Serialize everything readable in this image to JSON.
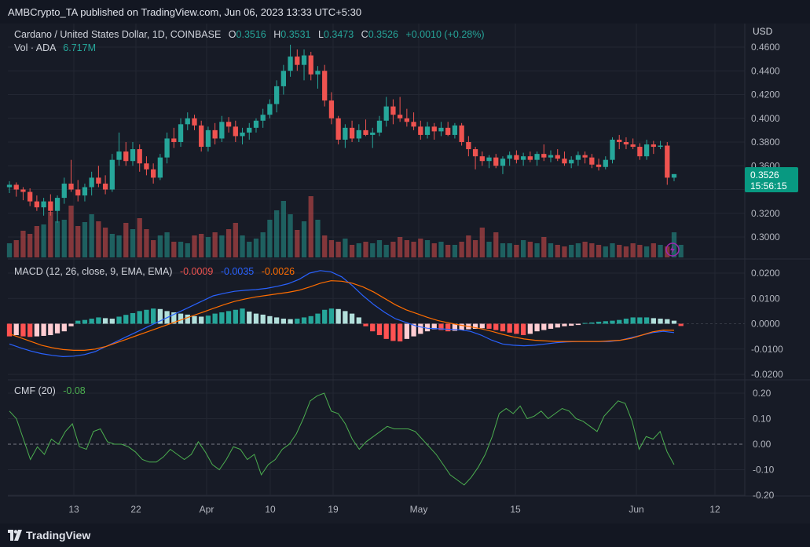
{
  "publisher_line": "AMBCrypto_TA published on TradingView.com, Jun 06, 2023 13:33 UTC+5:30",
  "footer": {
    "brand": "TradingView"
  },
  "legend": {
    "symbol": "Cardano / United States Dollar, 1D, COINBASE",
    "o_label": "O",
    "o_value": "0.3516",
    "h_label": "H",
    "h_value": "0.3531",
    "l_label": "L",
    "l_value": "0.3473",
    "c_label": "C",
    "c_value": "0.3526",
    "change": "+0.0010 (+0.28%)",
    "vol_label": "Vol · ADA",
    "vol_value": "6.717M"
  },
  "price_axis": {
    "currency": "USD",
    "ticks": [
      "0.4600",
      "0.4400",
      "0.4200",
      "0.4000",
      "0.3800",
      "0.3600",
      "0.3200",
      "0.3000"
    ],
    "last_price": "0.3526",
    "countdown": "15:56:15"
  },
  "macd": {
    "label": "MACD (12, 26, close, 9, EMA, EMA)",
    "hist_value": "-0.0009",
    "macd_value": "-0.0035",
    "signal_value": "-0.0026",
    "ticks": [
      "0.0200",
      "0.0100",
      "0.0000",
      "-0.0100",
      "-0.0200"
    ]
  },
  "cmf": {
    "label": "CMF (20)",
    "value": "-0.08",
    "ticks": [
      "0.20",
      "0.10",
      "0.00",
      "-0.10",
      "-0.20"
    ]
  },
  "time_axis": {
    "labels": [
      "13",
      "22",
      "Apr",
      "10",
      "19",
      "May",
      "15",
      "Jun",
      "12"
    ]
  },
  "colors": {
    "up": "#26a69a",
    "down": "#ef5350",
    "macd_line": "#2962ff",
    "signal_line": "#ff6d00",
    "cmf_line": "#4caf50",
    "badge": "#089981"
  },
  "chart_data": {
    "type": "candlestick",
    "title": "Cardano / United States Dollar, 1D, COINBASE",
    "ylim": [
      0.285,
      0.47
    ],
    "ohlc": [
      [
        0.342,
        0.347,
        0.337,
        0.344
      ],
      [
        0.344,
        0.346,
        0.334,
        0.34
      ],
      [
        0.34,
        0.342,
        0.331,
        0.338
      ],
      [
        0.338,
        0.341,
        0.326,
        0.33
      ],
      [
        0.33,
        0.335,
        0.322,
        0.325
      ],
      [
        0.325,
        0.333,
        0.318,
        0.33
      ],
      [
        0.33,
        0.336,
        0.318,
        0.322
      ],
      [
        0.322,
        0.335,
        0.312,
        0.333
      ],
      [
        0.333,
        0.35,
        0.328,
        0.345
      ],
      [
        0.345,
        0.365,
        0.338,
        0.34
      ],
      [
        0.34,
        0.348,
        0.33,
        0.335
      ],
      [
        0.335,
        0.345,
        0.33,
        0.342
      ],
      [
        0.342,
        0.355,
        0.335,
        0.35
      ],
      [
        0.35,
        0.36,
        0.342,
        0.345
      ],
      [
        0.345,
        0.352,
        0.336,
        0.34
      ],
      [
        0.34,
        0.37,
        0.338,
        0.365
      ],
      [
        0.365,
        0.388,
        0.36,
        0.372
      ],
      [
        0.372,
        0.38,
        0.36,
        0.364
      ],
      [
        0.364,
        0.38,
        0.36,
        0.374
      ],
      [
        0.374,
        0.378,
        0.355,
        0.362
      ],
      [
        0.362,
        0.368,
        0.352,
        0.357
      ],
      [
        0.357,
        0.362,
        0.345,
        0.35
      ],
      [
        0.35,
        0.37,
        0.348,
        0.367
      ],
      [
        0.367,
        0.388,
        0.362,
        0.383
      ],
      [
        0.383,
        0.392,
        0.375,
        0.38
      ],
      [
        0.38,
        0.4,
        0.376,
        0.395
      ],
      [
        0.395,
        0.405,
        0.39,
        0.4
      ],
      [
        0.4,
        0.403,
        0.39,
        0.394
      ],
      [
        0.394,
        0.398,
        0.372,
        0.376
      ],
      [
        0.376,
        0.393,
        0.372,
        0.39
      ],
      [
        0.39,
        0.396,
        0.378,
        0.383
      ],
      [
        0.383,
        0.402,
        0.38,
        0.397
      ],
      [
        0.397,
        0.401,
        0.388,
        0.393
      ],
      [
        0.393,
        0.398,
        0.38,
        0.385
      ],
      [
        0.385,
        0.392,
        0.378,
        0.388
      ],
      [
        0.388,
        0.396,
        0.382,
        0.392
      ],
      [
        0.392,
        0.4,
        0.388,
        0.398
      ],
      [
        0.398,
        0.408,
        0.392,
        0.403
      ],
      [
        0.403,
        0.416,
        0.4,
        0.412
      ],
      [
        0.412,
        0.432,
        0.405,
        0.427
      ],
      [
        0.427,
        0.445,
        0.42,
        0.44
      ],
      [
        0.44,
        0.462,
        0.435,
        0.452
      ],
      [
        0.452,
        0.458,
        0.44,
        0.445
      ],
      [
        0.445,
        0.458,
        0.432,
        0.453
      ],
      [
        0.453,
        0.456,
        0.432,
        0.437
      ],
      [
        0.437,
        0.444,
        0.425,
        0.44
      ],
      [
        0.44,
        0.445,
        0.41,
        0.415
      ],
      [
        0.415,
        0.422,
        0.395,
        0.4
      ],
      [
        0.4,
        0.402,
        0.378,
        0.382
      ],
      [
        0.382,
        0.395,
        0.375,
        0.392
      ],
      [
        0.392,
        0.398,
        0.38,
        0.383
      ],
      [
        0.383,
        0.395,
        0.38,
        0.39
      ],
      [
        0.39,
        0.399,
        0.385,
        0.386
      ],
      [
        0.386,
        0.392,
        0.375,
        0.388
      ],
      [
        0.388,
        0.402,
        0.385,
        0.398
      ],
      [
        0.398,
        0.418,
        0.393,
        0.41
      ],
      [
        0.41,
        0.416,
        0.395,
        0.403
      ],
      [
        0.403,
        0.418,
        0.397,
        0.4
      ],
      [
        0.4,
        0.408,
        0.393,
        0.397
      ],
      [
        0.397,
        0.405,
        0.39,
        0.393
      ],
      [
        0.393,
        0.398,
        0.382,
        0.386
      ],
      [
        0.386,
        0.397,
        0.383,
        0.393
      ],
      [
        0.393,
        0.396,
        0.382,
        0.389
      ],
      [
        0.389,
        0.397,
        0.385,
        0.392
      ],
      [
        0.392,
        0.397,
        0.385,
        0.386
      ],
      [
        0.386,
        0.396,
        0.383,
        0.394
      ],
      [
        0.394,
        0.396,
        0.377,
        0.38
      ],
      [
        0.38,
        0.385,
        0.368,
        0.374
      ],
      [
        0.374,
        0.376,
        0.357,
        0.368
      ],
      [
        0.368,
        0.372,
        0.36,
        0.364
      ],
      [
        0.364,
        0.369,
        0.358,
        0.367
      ],
      [
        0.367,
        0.37,
        0.358,
        0.36
      ],
      [
        0.36,
        0.368,
        0.353,
        0.366
      ],
      [
        0.366,
        0.372,
        0.36,
        0.369
      ],
      [
        0.369,
        0.373,
        0.362,
        0.365
      ],
      [
        0.365,
        0.371,
        0.36,
        0.368
      ],
      [
        0.368,
        0.372,
        0.363,
        0.365
      ],
      [
        0.365,
        0.372,
        0.36,
        0.37
      ],
      [
        0.37,
        0.378,
        0.364,
        0.367
      ],
      [
        0.367,
        0.373,
        0.363,
        0.369
      ],
      [
        0.369,
        0.374,
        0.364,
        0.366
      ],
      [
        0.366,
        0.372,
        0.36,
        0.362
      ],
      [
        0.362,
        0.368,
        0.358,
        0.365
      ],
      [
        0.365,
        0.372,
        0.36,
        0.369
      ],
      [
        0.369,
        0.372,
        0.362,
        0.367
      ],
      [
        0.367,
        0.37,
        0.358,
        0.361
      ],
      [
        0.361,
        0.366,
        0.356,
        0.359
      ],
      [
        0.359,
        0.368,
        0.357,
        0.365
      ],
      [
        0.365,
        0.384,
        0.362,
        0.382
      ],
      [
        0.382,
        0.386,
        0.374,
        0.38
      ],
      [
        0.38,
        0.384,
        0.374,
        0.378
      ],
      [
        0.378,
        0.383,
        0.374,
        0.376
      ],
      [
        0.376,
        0.379,
        0.365,
        0.368
      ],
      [
        0.368,
        0.382,
        0.365,
        0.378
      ],
      [
        0.378,
        0.381,
        0.37,
        0.376
      ],
      [
        0.376,
        0.381,
        0.374,
        0.377
      ],
      [
        0.377,
        0.38,
        0.344,
        0.35
      ],
      [
        0.35,
        0.353,
        0.347,
        0.353
      ]
    ],
    "volume": [
      18,
      22,
      34,
      30,
      40,
      42,
      58,
      46,
      48,
      66,
      40,
      45,
      55,
      46,
      38,
      30,
      28,
      44,
      36,
      50,
      36,
      22,
      28,
      32,
      20,
      20,
      18,
      28,
      30,
      26,
      32,
      28,
      36,
      44,
      28,
      20,
      24,
      32,
      48,
      60,
      72,
      55,
      35,
      46,
      78,
      48,
      28,
      22,
      20,
      24,
      16,
      18,
      20,
      18,
      22,
      16,
      20,
      26,
      22,
      20,
      24,
      22,
      18,
      20,
      16,
      16,
      20,
      28,
      22,
      38,
      20,
      32,
      18,
      18,
      16,
      22,
      20,
      18,
      26,
      18,
      16,
      14,
      16,
      18,
      20,
      18,
      16,
      14,
      18,
      16,
      14,
      18,
      16,
      14,
      18,
      16,
      14,
      32,
      16
    ],
    "macd_hist": [
      -0.005,
      -0.0045,
      -0.005,
      -0.0052,
      -0.005,
      -0.0048,
      -0.0045,
      -0.0038,
      -0.003,
      -0.001,
      0.0012,
      0.0015,
      0.002,
      0.0025,
      0.0022,
      0.002,
      0.0028,
      0.0035,
      0.0042,
      0.005,
      0.0055,
      0.006,
      0.0058,
      0.005,
      0.0045,
      0.004,
      0.0036,
      0.003,
      0.0028,
      0.0032,
      0.004,
      0.0045,
      0.005,
      0.0055,
      0.006,
      0.0048,
      0.004,
      0.0036,
      0.003,
      0.0025,
      0.002,
      0.0018,
      0.002,
      0.0025,
      0.003,
      0.004,
      0.0055,
      0.006,
      0.0058,
      0.005,
      0.004,
      0.0025,
      -0.001,
      -0.003,
      -0.0045,
      -0.006,
      -0.0068,
      -0.007,
      -0.006,
      -0.005,
      -0.004,
      -0.003,
      -0.0022,
      -0.0025,
      -0.003,
      -0.0028,
      -0.0025,
      -0.0022,
      -0.002,
      -0.0018,
      -0.002,
      -0.0025,
      -0.003,
      -0.0035,
      -0.004,
      -0.0045,
      -0.004,
      -0.003,
      -0.0025,
      -0.002,
      -0.0015,
      -0.001,
      -0.0008,
      -0.0005,
      0.0003,
      0.0005,
      0.0008,
      0.001,
      0.0012,
      0.0015,
      0.002,
      0.0025,
      0.0025,
      0.0025,
      0.0022,
      0.002,
      0.0018,
      0.0012,
      -0.0009
    ],
    "macd_line": [
      -0.008,
      -0.0095,
      -0.0108,
      -0.0118,
      -0.0125,
      -0.013,
      -0.0128,
      -0.0122,
      -0.011,
      -0.009,
      -0.007,
      -0.005,
      -0.003,
      -0.001,
      0.001,
      0.003,
      0.005,
      0.007,
      0.009,
      0.011,
      0.012,
      0.0128,
      0.0132,
      0.0135,
      0.014,
      0.0148,
      0.0158,
      0.0175,
      0.02,
      0.021,
      0.0205,
      0.0185,
      0.015,
      0.011,
      0.0075,
      0.0045,
      0.002,
      0.0005,
      -0.001,
      -0.0018,
      -0.002,
      -0.0022,
      -0.0024,
      -0.003,
      -0.0045,
      -0.0065,
      -0.008,
      -0.0085,
      -0.0087,
      -0.0085,
      -0.008,
      -0.0075,
      -0.0072,
      -0.007,
      -0.007,
      -0.007,
      -0.007,
      -0.0065,
      -0.0055,
      -0.0045,
      -0.0035,
      -0.003,
      -0.0035
    ],
    "signal_line": [
      -0.004,
      -0.0055,
      -0.007,
      -0.0085,
      -0.0095,
      -0.0102,
      -0.0105,
      -0.0105,
      -0.01,
      -0.009,
      -0.0075,
      -0.006,
      -0.0045,
      -0.003,
      -0.0015,
      0.0,
      0.0015,
      0.003,
      0.0045,
      0.006,
      0.0075,
      0.0088,
      0.0098,
      0.0106,
      0.0112,
      0.0118,
      0.0124,
      0.0132,
      0.0145,
      0.016,
      0.017,
      0.0168,
      0.016,
      0.0145,
      0.0125,
      0.01,
      0.0075,
      0.0055,
      0.004,
      0.0025,
      0.0012,
      0.0003,
      -0.0005,
      -0.0012,
      -0.002,
      -0.003,
      -0.0042,
      -0.0052,
      -0.006,
      -0.0065,
      -0.0068,
      -0.007,
      -0.007,
      -0.007,
      -0.007,
      -0.007,
      -0.0068,
      -0.0065,
      -0.0058,
      -0.0045,
      -0.0032,
      -0.0025,
      -0.0026
    ],
    "cmf": [
      0.13,
      0.1,
      0.02,
      -0.06,
      -0.01,
      -0.04,
      0.02,
      0.0,
      0.05,
      0.08,
      -0.01,
      -0.02,
      0.05,
      0.06,
      0.01,
      0.0,
      0.0,
      -0.01,
      -0.03,
      -0.06,
      -0.07,
      -0.07,
      -0.05,
      -0.02,
      -0.04,
      -0.06,
      -0.04,
      0.01,
      -0.03,
      -0.08,
      -0.1,
      -0.06,
      -0.01,
      -0.02,
      -0.06,
      -0.04,
      -0.12,
      -0.08,
      -0.06,
      -0.02,
      0.0,
      0.04,
      0.1,
      0.17,
      0.19,
      0.2,
      0.13,
      0.12,
      0.08,
      0.02,
      -0.02,
      0.01,
      0.03,
      0.05,
      0.07,
      0.06,
      0.06,
      0.06,
      0.05,
      0.02,
      -0.01,
      -0.04,
      -0.08,
      -0.12,
      -0.14,
      -0.16,
      -0.13,
      -0.09,
      -0.04,
      0.03,
      0.12,
      0.14,
      0.12,
      0.15,
      0.1,
      0.11,
      0.13,
      0.1,
      0.12,
      0.14,
      0.13,
      0.1,
      0.09,
      0.07,
      0.05,
      0.11,
      0.14,
      0.17,
      0.16,
      0.09,
      -0.02,
      0.03,
      0.02,
      0.05,
      -0.03,
      -0.08
    ]
  }
}
